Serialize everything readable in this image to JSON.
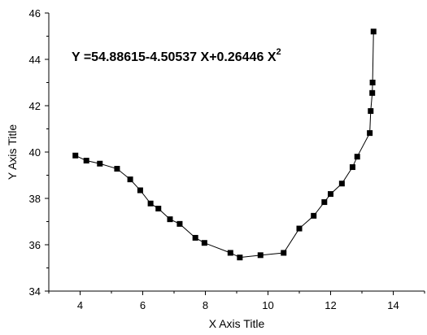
{
  "chart_data": {
    "type": "line",
    "title": "",
    "equation": {
      "text": "Y =54.88615-4.50537 X+0.26446 X",
      "superscript": "2"
    },
    "xlabel": "X Axis Title",
    "ylabel": "Y Axis Title",
    "xlim": [
      3,
      15
    ],
    "ylim": [
      34,
      46
    ],
    "xticks": [
      4,
      6,
      8,
      10,
      12,
      14
    ],
    "yticks": [
      34,
      36,
      38,
      40,
      42,
      44,
      46
    ],
    "xtick_labels": [
      "4",
      "6",
      "8",
      "10",
      "12",
      "14"
    ],
    "ytick_labels": [
      "34",
      "36",
      "38",
      "40",
      "42",
      "44",
      "46"
    ],
    "marker": "square",
    "line_color": "#000000",
    "marker_color": "#000000",
    "grid": false,
    "series": [
      {
        "x": [
          3.85,
          4.2,
          4.63,
          5.18,
          5.6,
          5.92,
          6.25,
          6.5,
          6.87,
          7.18,
          7.68,
          7.97,
          8.8,
          9.1,
          9.76,
          10.5,
          11.0,
          11.46,
          11.8,
          12.0,
          12.36,
          12.7,
          12.85,
          13.25,
          13.28,
          13.33,
          13.34,
          13.37
        ],
        "y": [
          39.85,
          39.63,
          39.5,
          39.28,
          38.82,
          38.35,
          37.78,
          37.56,
          37.1,
          36.9,
          36.3,
          36.08,
          35.65,
          35.45,
          35.55,
          35.65,
          36.7,
          37.25,
          37.84,
          38.19,
          38.64,
          39.35,
          39.8,
          40.82,
          41.77,
          42.55,
          43.0,
          45.2
        ]
      }
    ]
  }
}
